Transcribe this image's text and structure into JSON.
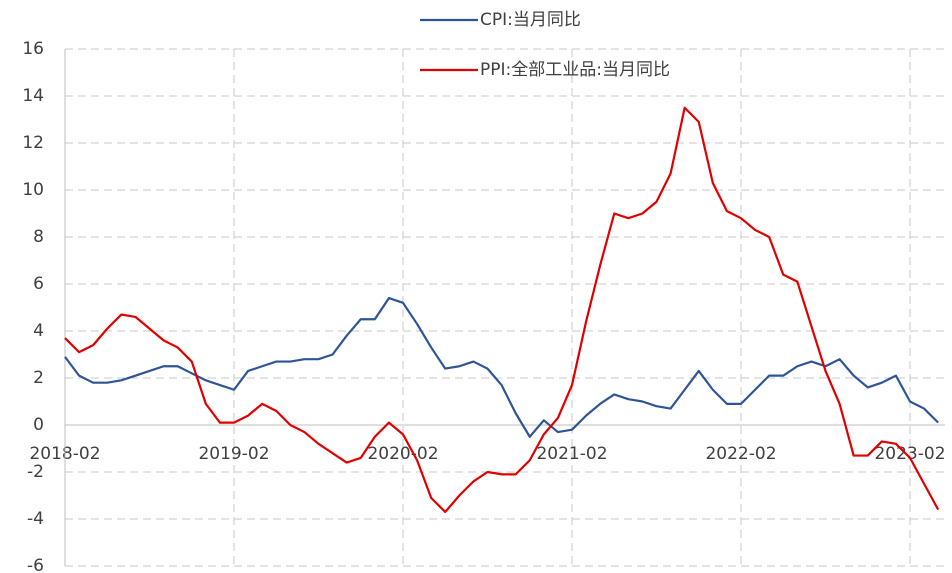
{
  "chart_data": {
    "type": "line",
    "x": [
      "2018-02",
      "2018-03",
      "2018-04",
      "2018-05",
      "2018-06",
      "2018-07",
      "2018-08",
      "2018-09",
      "2018-10",
      "2018-11",
      "2018-12",
      "2019-01",
      "2019-02",
      "2019-03",
      "2019-04",
      "2019-05",
      "2019-06",
      "2019-07",
      "2019-08",
      "2019-09",
      "2019-10",
      "2019-11",
      "2019-12",
      "2020-01",
      "2020-02",
      "2020-03",
      "2020-04",
      "2020-05",
      "2020-06",
      "2020-07",
      "2020-08",
      "2020-09",
      "2020-10",
      "2020-11",
      "2020-12",
      "2021-01",
      "2021-02",
      "2021-03",
      "2021-04",
      "2021-05",
      "2021-06",
      "2021-07",
      "2021-08",
      "2021-09",
      "2021-10",
      "2021-11",
      "2021-12",
      "2022-01",
      "2022-02",
      "2022-03",
      "2022-04",
      "2022-05",
      "2022-06",
      "2022-07",
      "2022-08",
      "2022-09",
      "2022-10",
      "2022-11",
      "2022-12",
      "2023-01",
      "2023-02",
      "2023-03",
      "2023-04"
    ],
    "series": [
      {
        "name": "CPI:当月同比",
        "color": "#2f5597",
        "values": [
          2.9,
          2.1,
          1.8,
          1.8,
          1.9,
          2.1,
          2.3,
          2.5,
          2.5,
          2.2,
          1.9,
          1.7,
          1.5,
          2.3,
          2.5,
          2.7,
          2.7,
          2.8,
          2.8,
          3.0,
          3.8,
          4.5,
          4.5,
          5.4,
          5.2,
          4.3,
          3.3,
          2.4,
          2.5,
          2.7,
          2.4,
          1.7,
          0.5,
          -0.5,
          0.2,
          -0.3,
          -0.2,
          0.4,
          0.9,
          1.3,
          1.1,
          1.0,
          0.8,
          0.7,
          1.5,
          2.3,
          1.5,
          0.9,
          0.9,
          1.5,
          2.1,
          2.1,
          2.5,
          2.7,
          2.5,
          2.8,
          2.1,
          1.6,
          1.8,
          2.1,
          1.0,
          0.7,
          0.1
        ]
      },
      {
        "name": "PPI:全部工业品:当月同比",
        "color": "#e00000",
        "values": [
          3.7,
          3.1,
          3.4,
          4.1,
          4.7,
          4.6,
          4.1,
          3.6,
          3.3,
          2.7,
          0.9,
          0.1,
          0.1,
          0.4,
          0.9,
          0.6,
          0.0,
          -0.3,
          -0.8,
          -1.2,
          -1.6,
          -1.4,
          -0.5,
          0.1,
          -0.4,
          -1.5,
          -3.1,
          -3.7,
          -3.0,
          -2.4,
          -2.0,
          -2.1,
          -2.1,
          -1.5,
          -0.4,
          0.3,
          1.7,
          4.4,
          6.8,
          9.0,
          8.8,
          9.0,
          9.5,
          10.7,
          13.5,
          12.9,
          10.3,
          9.1,
          8.8,
          8.3,
          8.0,
          6.4,
          6.1,
          4.2,
          2.3,
          0.9,
          -1.3,
          -1.3,
          -0.7,
          -0.8,
          -1.4,
          -2.5,
          -3.6
        ]
      }
    ],
    "xticks": [
      "2018-02",
      "2019-02",
      "2020-02",
      "2021-02",
      "2022-02",
      "2023-02"
    ],
    "ylim": [
      -6,
      16
    ],
    "yticks": [
      -6,
      -4,
      -2,
      0,
      2,
      4,
      6,
      8,
      10,
      12,
      14,
      16
    ],
    "grid": true,
    "legend": "top"
  }
}
